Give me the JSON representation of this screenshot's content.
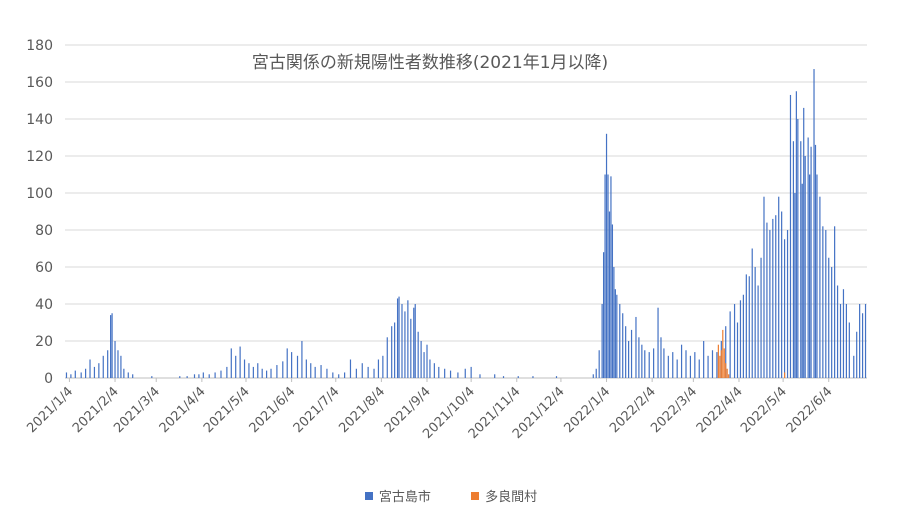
{
  "chart_data": {
    "type": "bar",
    "title": "宮古関係の新規陽性者数推移(2021年1月以降)",
    "xlabel": "",
    "ylabel": "",
    "ylim": [
      0,
      180
    ],
    "yticks": [
      "0",
      "20",
      "40",
      "60",
      "80",
      "100",
      "120",
      "140",
      "160",
      "180"
    ],
    "x_start": "2021-01-01",
    "x_end": "2022-06-30",
    "xtick_labels": [
      "2021/1/4",
      "2021/2/4",
      "2021/3/4",
      "2021/4/4",
      "2021/5/4",
      "2021/6/4",
      "2021/7/4",
      "2021/8/4",
      "2021/9/4",
      "2021/10/4",
      "2021/11/4",
      "2021/12/4",
      "2022/1/4",
      "2022/2/4",
      "2022/3/4",
      "2022/4/4",
      "2022/5/4",
      "2022/6/4"
    ],
    "grid": true,
    "legend_position": "bottom",
    "series": [
      {
        "name": "宮古島市",
        "color": "#4472C4",
        "points": [
          [
            "2021-01-02",
            3
          ],
          [
            "2021-01-05",
            2
          ],
          [
            "2021-01-08",
            4
          ],
          [
            "2021-01-12",
            3
          ],
          [
            "2021-01-15",
            5
          ],
          [
            "2021-01-18",
            10
          ],
          [
            "2021-01-21",
            6
          ],
          [
            "2021-01-24",
            8
          ],
          [
            "2021-01-27",
            12
          ],
          [
            "2021-01-30",
            15
          ],
          [
            "2021-02-01",
            34
          ],
          [
            "2021-02-02",
            35
          ],
          [
            "2021-02-04",
            20
          ],
          [
            "2021-02-06",
            15
          ],
          [
            "2021-02-08",
            12
          ],
          [
            "2021-02-10",
            5
          ],
          [
            "2021-02-13",
            3
          ],
          [
            "2021-02-16",
            2
          ],
          [
            "2021-03-01",
            1
          ],
          [
            "2021-03-20",
            1
          ],
          [
            "2021-03-25",
            1
          ],
          [
            "2021-03-30",
            2
          ],
          [
            "2021-04-02",
            2
          ],
          [
            "2021-04-05",
            3
          ],
          [
            "2021-04-09",
            2
          ],
          [
            "2021-04-13",
            3
          ],
          [
            "2021-04-17",
            4
          ],
          [
            "2021-04-21",
            6
          ],
          [
            "2021-04-24",
            16
          ],
          [
            "2021-04-27",
            12
          ],
          [
            "2021-04-30",
            17
          ],
          [
            "2021-05-03",
            10
          ],
          [
            "2021-05-06",
            8
          ],
          [
            "2021-05-09",
            6
          ],
          [
            "2021-05-12",
            8
          ],
          [
            "2021-05-15",
            5
          ],
          [
            "2021-05-18",
            4
          ],
          [
            "2021-05-21",
            5
          ],
          [
            "2021-05-25",
            7
          ],
          [
            "2021-05-29",
            9
          ],
          [
            "2021-06-01",
            16
          ],
          [
            "2021-06-04",
            14
          ],
          [
            "2021-06-08",
            12
          ],
          [
            "2021-06-11",
            20
          ],
          [
            "2021-06-14",
            10
          ],
          [
            "2021-06-17",
            8
          ],
          [
            "2021-06-20",
            6
          ],
          [
            "2021-06-24",
            7
          ],
          [
            "2021-06-28",
            5
          ],
          [
            "2021-07-02",
            3
          ],
          [
            "2021-07-06",
            2
          ],
          [
            "2021-07-10",
            3
          ],
          [
            "2021-07-14",
            10
          ],
          [
            "2021-07-18",
            5
          ],
          [
            "2021-07-22",
            8
          ],
          [
            "2021-07-26",
            6
          ],
          [
            "2021-07-30",
            5
          ],
          [
            "2021-08-02",
            10
          ],
          [
            "2021-08-05",
            12
          ],
          [
            "2021-08-08",
            22
          ],
          [
            "2021-08-11",
            28
          ],
          [
            "2021-08-13",
            30
          ],
          [
            "2021-08-15",
            43
          ],
          [
            "2021-08-16",
            44
          ],
          [
            "2021-08-18",
            40
          ],
          [
            "2021-08-20",
            36
          ],
          [
            "2021-08-22",
            42
          ],
          [
            "2021-08-24",
            32
          ],
          [
            "2021-08-26",
            38
          ],
          [
            "2021-08-27",
            40
          ],
          [
            "2021-08-29",
            25
          ],
          [
            "2021-08-31",
            20
          ],
          [
            "2021-09-02",
            14
          ],
          [
            "2021-09-04",
            18
          ],
          [
            "2021-09-06",
            10
          ],
          [
            "2021-09-09",
            8
          ],
          [
            "2021-09-12",
            6
          ],
          [
            "2021-09-16",
            5
          ],
          [
            "2021-09-20",
            4
          ],
          [
            "2021-09-25",
            3
          ],
          [
            "2021-09-30",
            5
          ],
          [
            "2021-10-04",
            6
          ],
          [
            "2021-10-10",
            2
          ],
          [
            "2021-10-20",
            2
          ],
          [
            "2021-10-26",
            1
          ],
          [
            "2021-11-05",
            1
          ],
          [
            "2021-11-15",
            1
          ],
          [
            "2021-12-01",
            1
          ],
          [
            "2021-12-26",
            2
          ],
          [
            "2021-12-28",
            5
          ],
          [
            "2021-12-30",
            15
          ],
          [
            "2022-01-01",
            40
          ],
          [
            "2022-01-02",
            68
          ],
          [
            "2022-01-03",
            110
          ],
          [
            "2022-01-04",
            132
          ],
          [
            "2022-01-05",
            110
          ],
          [
            "2022-01-06",
            90
          ],
          [
            "2022-01-07",
            109
          ],
          [
            "2022-01-08",
            83
          ],
          [
            "2022-01-09",
            60
          ],
          [
            "2022-01-10",
            48
          ],
          [
            "2022-01-11",
            45
          ],
          [
            "2022-01-13",
            40
          ],
          [
            "2022-01-15",
            35
          ],
          [
            "2022-01-17",
            28
          ],
          [
            "2022-01-19",
            20
          ],
          [
            "2022-01-21",
            26
          ],
          [
            "2022-01-24",
            33
          ],
          [
            "2022-01-26",
            22
          ],
          [
            "2022-01-28",
            18
          ],
          [
            "2022-01-30",
            15
          ],
          [
            "2022-02-02",
            14
          ],
          [
            "2022-02-05",
            16
          ],
          [
            "2022-02-08",
            38
          ],
          [
            "2022-02-10",
            22
          ],
          [
            "2022-02-12",
            16
          ],
          [
            "2022-02-15",
            12
          ],
          [
            "2022-02-18",
            14
          ],
          [
            "2022-02-21",
            10
          ],
          [
            "2022-02-24",
            18
          ],
          [
            "2022-02-27",
            15
          ],
          [
            "2022-03-02",
            12
          ],
          [
            "2022-03-05",
            14
          ],
          [
            "2022-03-08",
            10
          ],
          [
            "2022-03-11",
            20
          ],
          [
            "2022-03-14",
            12
          ],
          [
            "2022-03-17",
            15
          ],
          [
            "2022-03-20",
            14
          ],
          [
            "2022-03-23",
            20
          ],
          [
            "2022-03-26",
            28
          ],
          [
            "2022-03-29",
            36
          ],
          [
            "2022-04-01",
            40
          ],
          [
            "2022-04-03",
            30
          ],
          [
            "2022-04-05",
            42
          ],
          [
            "2022-04-07",
            45
          ],
          [
            "2022-04-09",
            56
          ],
          [
            "2022-04-11",
            55
          ],
          [
            "2022-04-13",
            70
          ],
          [
            "2022-04-15",
            60
          ],
          [
            "2022-04-17",
            50
          ],
          [
            "2022-04-19",
            65
          ],
          [
            "2022-04-21",
            98
          ],
          [
            "2022-04-23",
            84
          ],
          [
            "2022-04-25",
            80
          ],
          [
            "2022-04-27",
            86
          ],
          [
            "2022-04-29",
            88
          ],
          [
            "2022-05-01",
            98
          ],
          [
            "2022-05-03",
            90
          ],
          [
            "2022-05-05",
            75
          ],
          [
            "2022-05-07",
            80
          ],
          [
            "2022-05-09",
            153
          ],
          [
            "2022-05-11",
            128
          ],
          [
            "2022-05-12",
            100
          ],
          [
            "2022-05-13",
            155
          ],
          [
            "2022-05-14",
            140
          ],
          [
            "2022-05-16",
            128
          ],
          [
            "2022-05-17",
            105
          ],
          [
            "2022-05-18",
            146
          ],
          [
            "2022-05-19",
            120
          ],
          [
            "2022-05-21",
            130
          ],
          [
            "2022-05-22",
            110
          ],
          [
            "2022-05-23",
            125
          ],
          [
            "2022-05-25",
            167
          ],
          [
            "2022-05-26",
            126
          ],
          [
            "2022-05-27",
            110
          ],
          [
            "2022-05-29",
            98
          ],
          [
            "2022-05-31",
            82
          ],
          [
            "2022-06-02",
            80
          ],
          [
            "2022-06-04",
            65
          ],
          [
            "2022-06-06",
            60
          ],
          [
            "2022-06-08",
            82
          ],
          [
            "2022-06-10",
            50
          ],
          [
            "2022-06-12",
            40
          ],
          [
            "2022-06-14",
            48
          ],
          [
            "2022-06-16",
            40
          ],
          [
            "2022-06-18",
            30
          ],
          [
            "2022-06-21",
            12
          ],
          [
            "2022-06-23",
            25
          ],
          [
            "2022-06-25",
            40
          ],
          [
            "2022-06-27",
            35
          ],
          [
            "2022-06-29",
            40
          ]
        ]
      },
      {
        "name": "多良間村",
        "color": "#ED7D31",
        "points": [
          [
            "2022-03-21",
            18
          ],
          [
            "2022-03-22",
            12
          ],
          [
            "2022-03-23",
            15
          ],
          [
            "2022-03-24",
            26
          ],
          [
            "2022-03-25",
            16
          ],
          [
            "2022-03-26",
            8
          ],
          [
            "2022-03-27",
            5
          ],
          [
            "2022-03-28",
            2
          ],
          [
            "2022-05-05",
            3
          ]
        ]
      }
    ]
  }
}
